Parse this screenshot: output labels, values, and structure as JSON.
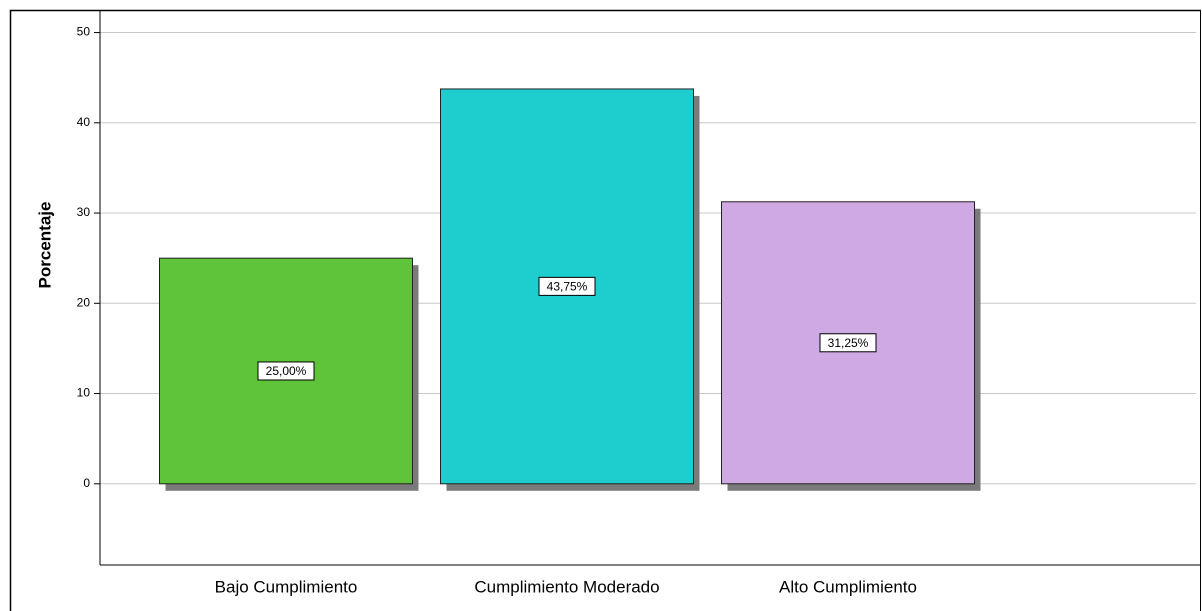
{
  "chart_data": {
    "type": "bar",
    "y_label": "Porcentaje",
    "categories": [
      "Bajo Cumplimiento",
      "Cumplimiento Moderado",
      "Alto Cumplimiento"
    ],
    "values": [
      25,
      43.75,
      31.25
    ],
    "value_labels": [
      "25,00%",
      "43,75%",
      "31,25%"
    ],
    "colors": [
      "#5fc43a",
      "#1ecdcd",
      "#cfa9e3"
    ],
    "ylim": [
      -9,
      52.5
    ],
    "yticks": [
      0,
      10,
      20,
      30,
      40,
      50
    ],
    "grid": true
  }
}
